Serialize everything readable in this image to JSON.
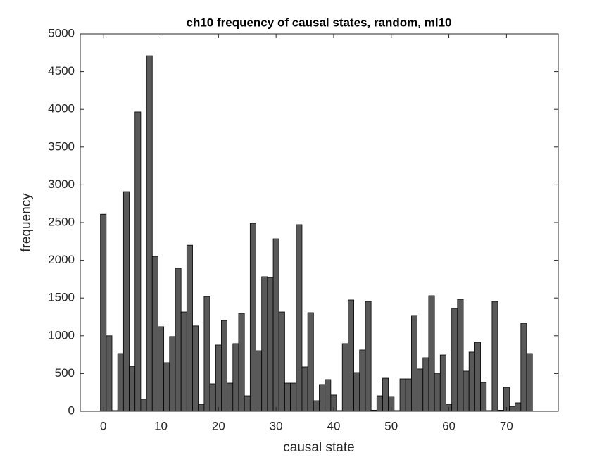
{
  "chart_data": {
    "type": "bar",
    "title": "ch10 frequency of causal states, random, ml10",
    "xlabel": "causal state",
    "ylabel": "frequency",
    "x": [
      0,
      1,
      2,
      3,
      4,
      5,
      6,
      7,
      8,
      9,
      10,
      11,
      12,
      13,
      14,
      15,
      16,
      17,
      18,
      19,
      20,
      21,
      22,
      23,
      24,
      25,
      26,
      27,
      28,
      29,
      30,
      31,
      32,
      33,
      34,
      35,
      36,
      37,
      38,
      39,
      40,
      41,
      42,
      43,
      44,
      45,
      46,
      47,
      48,
      49,
      50,
      51,
      52,
      53,
      54,
      55,
      56,
      57,
      58,
      59,
      60,
      61,
      62,
      63,
      64,
      65,
      66,
      67,
      68,
      69,
      70,
      71,
      72,
      73,
      74
    ],
    "values": [
      2610,
      1000,
      10,
      765,
      2910,
      597,
      3965,
      160,
      4710,
      2052,
      1120,
      644,
      990,
      1894,
      1315,
      2200,
      1130,
      93,
      1520,
      364,
      877,
      1203,
      373,
      896,
      1297,
      205,
      2490,
      802,
      1782,
      1772,
      2285,
      1315,
      373,
      373,
      2472,
      588,
      1306,
      140,
      355,
      420,
      215,
      10,
      896,
      1474,
      513,
      812,
      1455,
      15,
      205,
      438,
      196,
      10,
      429,
      429,
      1269,
      560,
      709,
      1530,
      504,
      746,
      93,
      1362,
      1483,
      532,
      784,
      914,
      382,
      10,
      1455,
      15,
      317,
      65,
      112,
      1166,
      765
    ],
    "color": "#595959",
    "xlim": [
      -4,
      79
    ],
    "xticks": [
      0,
      10,
      20,
      30,
      40,
      50,
      60,
      70
    ],
    "ylim": [
      0,
      5000
    ],
    "yticks": [
      0,
      500,
      1000,
      1500,
      2000,
      2500,
      3000,
      3500,
      4000,
      4500,
      5000
    ]
  }
}
